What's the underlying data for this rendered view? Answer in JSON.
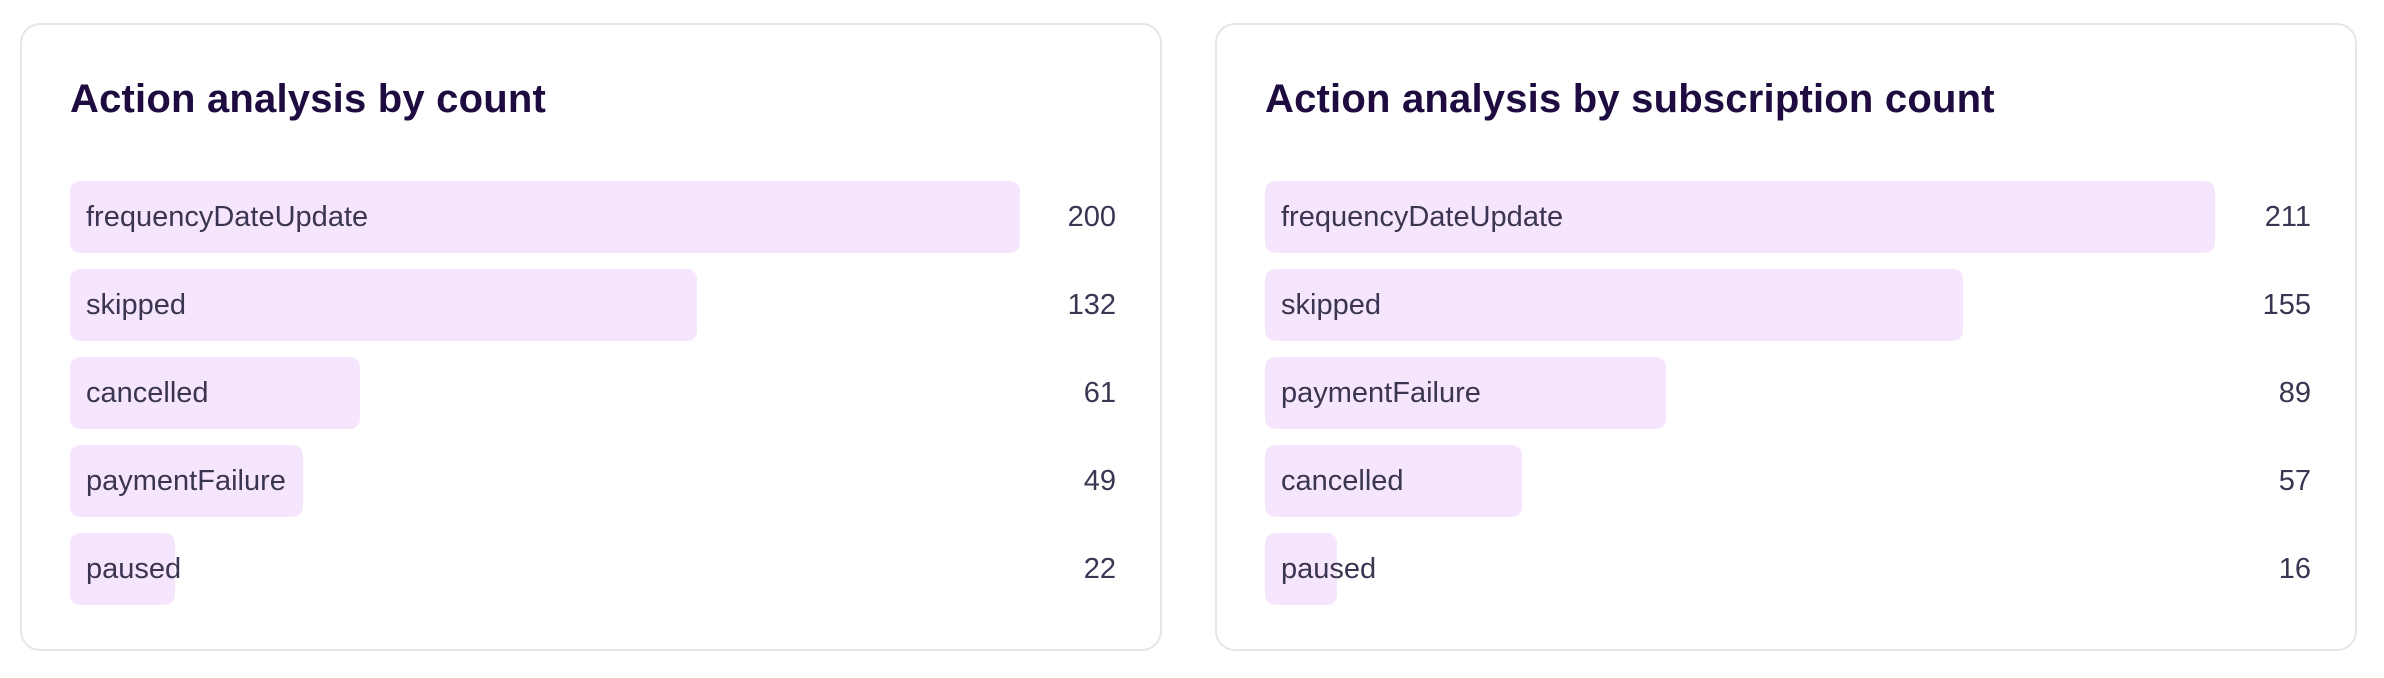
{
  "chart_data": [
    {
      "type": "bar",
      "orientation": "horizontal",
      "title": "Action analysis by count",
      "categories": [
        "frequencyDateUpdate",
        "skipped",
        "cancelled",
        "paymentFailure",
        "paused"
      ],
      "values": [
        200,
        132,
        61,
        49,
        22
      ],
      "xlim": [
        0,
        200
      ],
      "grid": false,
      "bar_color": "#f6e6fd"
    },
    {
      "type": "bar",
      "orientation": "horizontal",
      "title": "Action analysis by subscription count",
      "categories": [
        "frequencyDateUpdate",
        "skipped",
        "paymentFailure",
        "cancelled",
        "paused"
      ],
      "values": [
        211,
        155,
        89,
        57,
        16
      ],
      "xlim": [
        0,
        211
      ],
      "grid": false,
      "bar_color": "#f6e6fd"
    }
  ]
}
